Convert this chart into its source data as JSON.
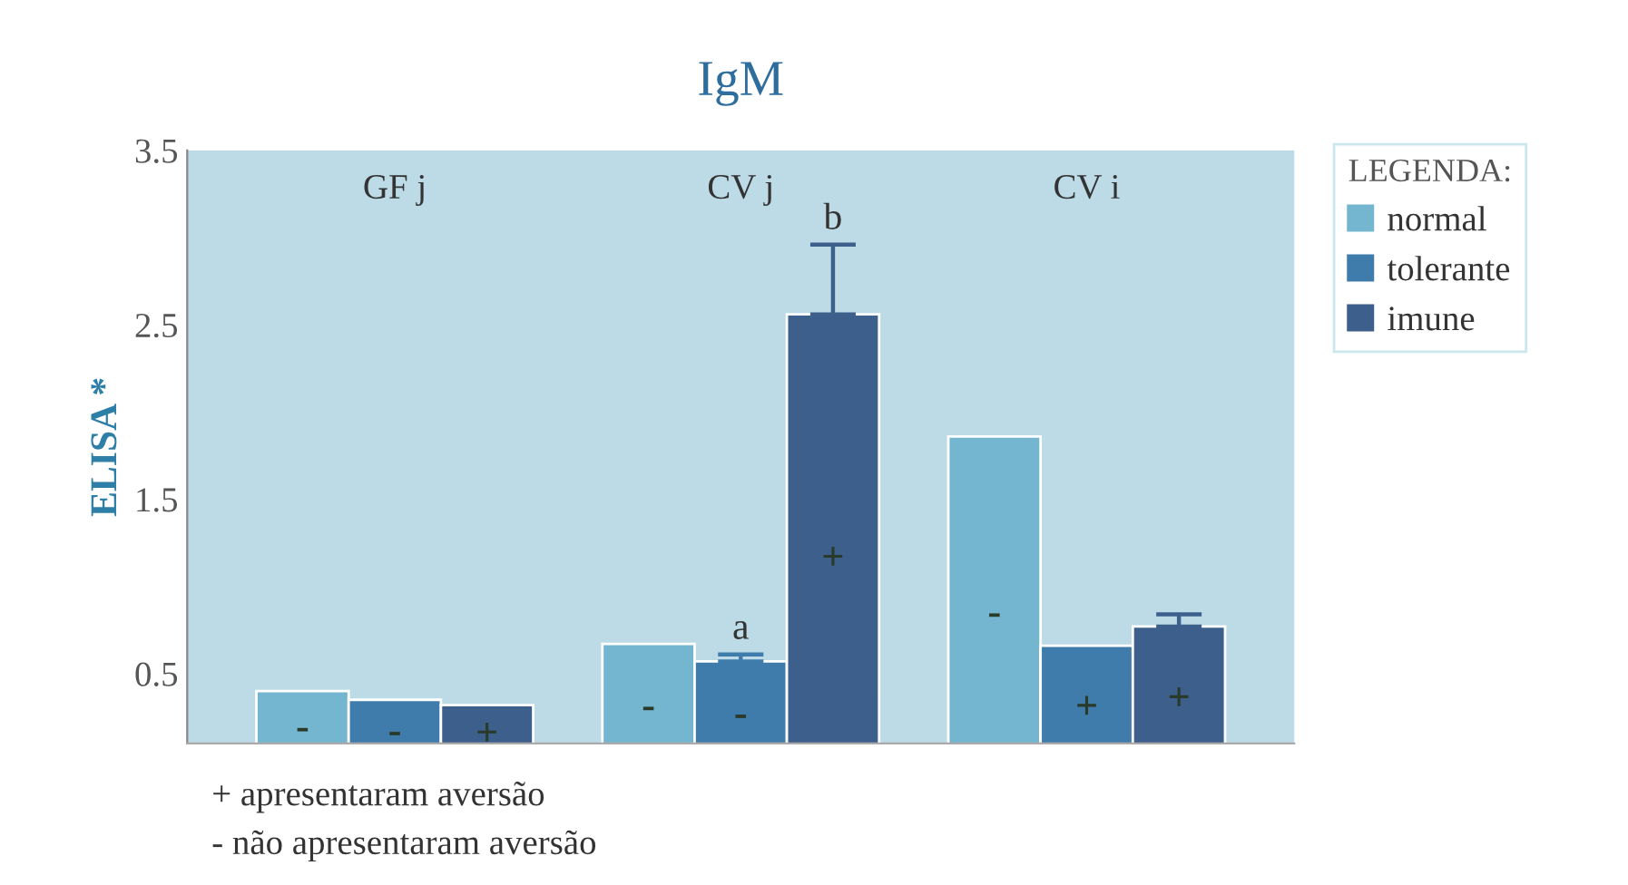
{
  "chart_data": {
    "type": "bar",
    "title": "IgM",
    "ylabel": "ELISA *",
    "categories": [
      "GF j",
      "CV j",
      "CV i"
    ],
    "series": [
      {
        "name": "normal",
        "color": "#74b6cf",
        "values": [
          0.4,
          0.67,
          1.86
        ],
        "value_labels": [
          "-",
          "-",
          "-"
        ]
      },
      {
        "name": "tolerante",
        "color": "#3f7cab",
        "values": [
          0.35,
          0.57,
          0.66
        ],
        "errors": [
          null,
          [
            0.57,
            0.61
          ],
          null
        ],
        "value_labels": [
          "-",
          "-",
          "+"
        ]
      },
      {
        "name": "imune",
        "color": "#3d5f8c",
        "values": [
          0.32,
          2.56,
          0.77
        ],
        "errors": [
          null,
          [
            2.56,
            2.96
          ],
          [
            0.77,
            0.84
          ]
        ],
        "value_labels": [
          "+",
          "+",
          "+"
        ]
      }
    ],
    "ylim": [
      0.1,
      3.5
    ],
    "yticks": [
      0.5,
      1.5,
      2.5,
      3.5
    ],
    "grid": false,
    "legend": "top right",
    "legend_title": "LEGENDA:",
    "annotations": [
      {
        "text": "a",
        "x": "CV j",
        "y": 0.61
      },
      "b",
      "+ apresentaram aversão",
      "- não apresentaram aversão"
    ]
  }
}
